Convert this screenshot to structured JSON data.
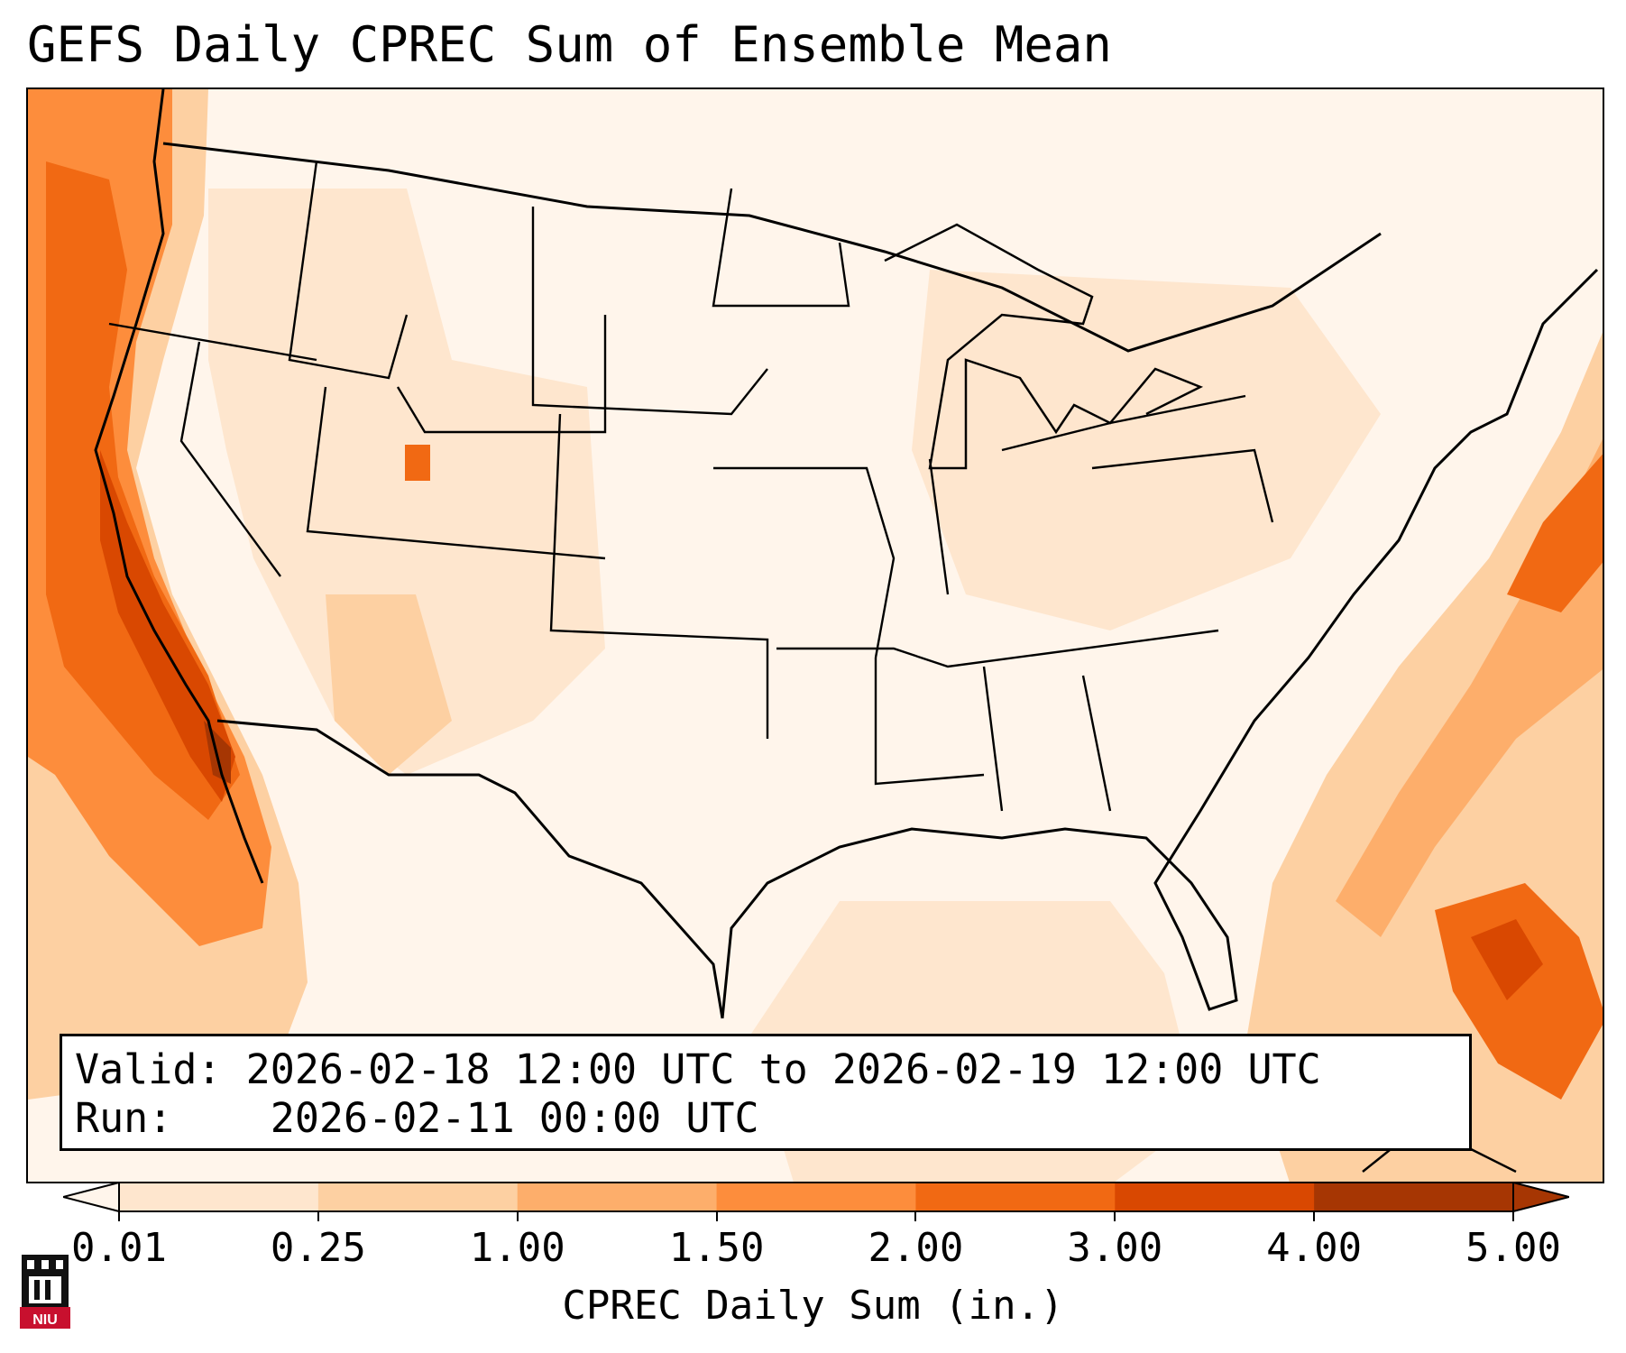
{
  "title": "GEFS Daily CPREC Sum of Ensemble Mean",
  "info": {
    "valid_label": "Valid:",
    "valid_value": "2026-02-18 12:00 UTC to 2026-02-19 12:00 UTC",
    "run_label": "Run:",
    "run_value": "2026-02-11 00:00 UTC"
  },
  "colorbar": {
    "label": "CPREC Daily Sum (in.)",
    "ticks": [
      "0.01",
      "0.25",
      "1.00",
      "1.50",
      "2.00",
      "3.00",
      "4.00",
      "5.00"
    ],
    "colors": [
      "#fff5eb",
      "#fee6ce",
      "#fdd0a2",
      "#fdae6b",
      "#fd8d3c",
      "#f16913",
      "#d94801",
      "#a63603"
    ],
    "extend": "both"
  },
  "logo": {
    "text": "NIU"
  },
  "map": {
    "shading_colors": [
      "#fff5eb",
      "#fee6ce",
      "#fdd0a2",
      "#fdae6b",
      "#fd8d3c",
      "#f16913",
      "#d94801",
      "#a63603"
    ]
  }
}
